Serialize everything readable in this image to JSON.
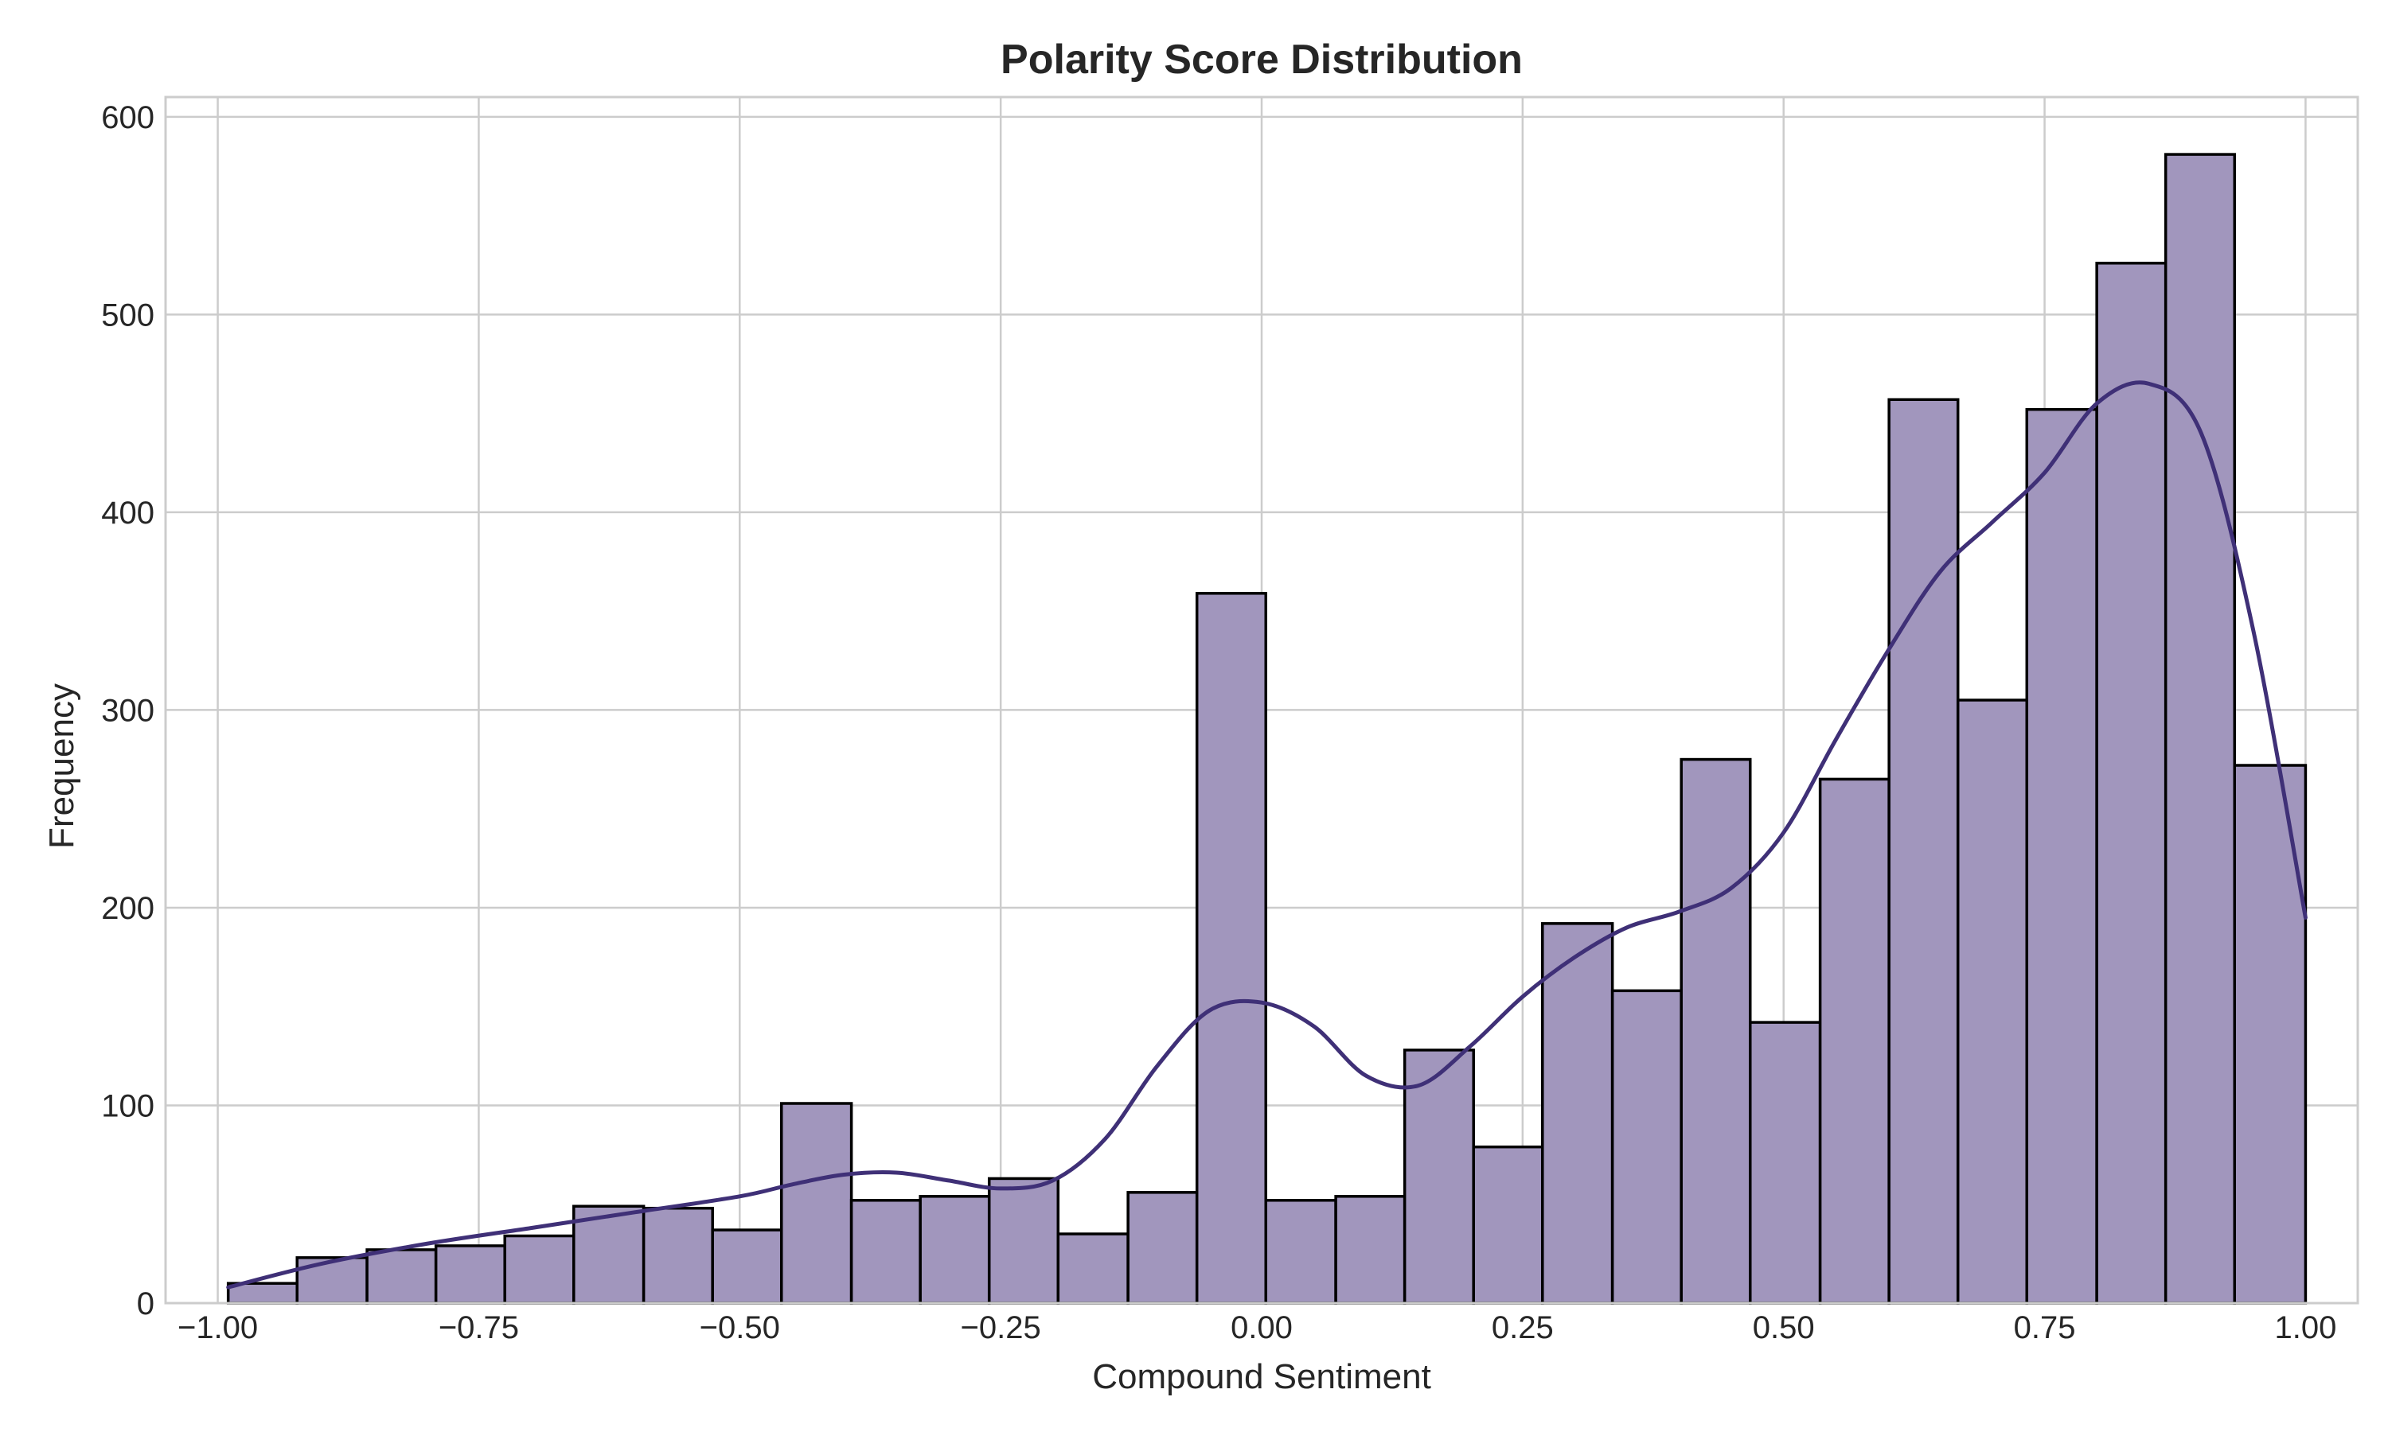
{
  "chart_data": {
    "type": "bar",
    "title": "Polarity Score Distribution",
    "xlabel": "Compound Sentiment",
    "ylabel": "Frequency",
    "xlim": [
      -1.05,
      1.05
    ],
    "ylim": [
      0,
      610
    ],
    "grid": true,
    "x_ticks": [
      -1.0,
      -0.75,
      -0.5,
      -0.25,
      0.0,
      0.25,
      0.5,
      0.75,
      1.0
    ],
    "x_tick_labels": [
      "−1.00",
      "−0.75",
      "−0.50",
      "−0.25",
      "0.00",
      "0.25",
      "0.50",
      "0.75",
      "1.00"
    ],
    "y_ticks": [
      0,
      100,
      200,
      300,
      400,
      500,
      600
    ],
    "y_tick_labels": [
      "0",
      "100",
      "200",
      "300",
      "400",
      "500",
      "600"
    ],
    "bin_range": [
      -0.99,
      1.0
    ],
    "bins": [
      {
        "x0": -0.99,
        "x1": -0.924,
        "count": 10
      },
      {
        "x0": -0.924,
        "x1": -0.857,
        "count": 23
      },
      {
        "x0": -0.857,
        "x1": -0.791,
        "count": 27
      },
      {
        "x0": -0.791,
        "x1": -0.725,
        "count": 29
      },
      {
        "x0": -0.725,
        "x1": -0.659,
        "count": 34
      },
      {
        "x0": -0.659,
        "x1": -0.592,
        "count": 49
      },
      {
        "x0": -0.592,
        "x1": -0.526,
        "count": 48
      },
      {
        "x0": -0.526,
        "x1": -0.46,
        "count": 37
      },
      {
        "x0": -0.46,
        "x1": -0.393,
        "count": 101
      },
      {
        "x0": -0.393,
        "x1": -0.327,
        "count": 52
      },
      {
        "x0": -0.327,
        "x1": -0.261,
        "count": 54
      },
      {
        "x0": -0.261,
        "x1": -0.195,
        "count": 63
      },
      {
        "x0": -0.195,
        "x1": -0.128,
        "count": 35
      },
      {
        "x0": -0.128,
        "x1": -0.062,
        "count": 56
      },
      {
        "x0": -0.062,
        "x1": 0.004,
        "count": 359
      },
      {
        "x0": 0.004,
        "x1": 0.071,
        "count": 52
      },
      {
        "x0": 0.071,
        "x1": 0.137,
        "count": 54
      },
      {
        "x0": 0.137,
        "x1": 0.203,
        "count": 128
      },
      {
        "x0": 0.203,
        "x1": 0.269,
        "count": 79
      },
      {
        "x0": 0.269,
        "x1": 0.336,
        "count": 192
      },
      {
        "x0": 0.336,
        "x1": 0.402,
        "count": 158
      },
      {
        "x0": 0.402,
        "x1": 0.468,
        "count": 275
      },
      {
        "x0": 0.468,
        "x1": 0.535,
        "count": 142
      },
      {
        "x0": 0.535,
        "x1": 0.601,
        "count": 265
      },
      {
        "x0": 0.601,
        "x1": 0.667,
        "count": 457
      },
      {
        "x0": 0.667,
        "x1": 0.733,
        "count": 305
      },
      {
        "x0": 0.733,
        "x1": 0.8,
        "count": 452
      },
      {
        "x0": 0.8,
        "x1": 0.866,
        "count": 526
      },
      {
        "x0": 0.866,
        "x1": 0.932,
        "count": 581
      },
      {
        "x0": 0.932,
        "x1": 1.0,
        "count": 272
      }
    ],
    "kde": {
      "x": [
        -0.99,
        -0.9,
        -0.8,
        -0.7,
        -0.6,
        -0.5,
        -0.45,
        -0.4,
        -0.35,
        -0.3,
        -0.25,
        -0.2,
        -0.15,
        -0.1,
        -0.05,
        0.0,
        0.05,
        0.1,
        0.15,
        0.2,
        0.25,
        0.3,
        0.35,
        0.4,
        0.45,
        0.5,
        0.55,
        0.6,
        0.65,
        0.7,
        0.75,
        0.8,
        0.85,
        0.9,
        0.95,
        1.0
      ],
      "y": [
        8,
        20,
        30,
        38,
        46,
        54,
        60,
        65,
        66,
        62,
        58,
        62,
        83,
        120,
        148,
        152,
        140,
        115,
        110,
        130,
        155,
        175,
        190,
        198,
        210,
        238,
        285,
        330,
        370,
        395,
        420,
        455,
        465,
        440,
        340,
        195
      ]
    },
    "colors": {
      "bar_fill": "#a196bd",
      "bar_edge": "#000000",
      "kde_line": "#3f3077",
      "grid": "#cccccc",
      "background": "#ffffff"
    }
  }
}
